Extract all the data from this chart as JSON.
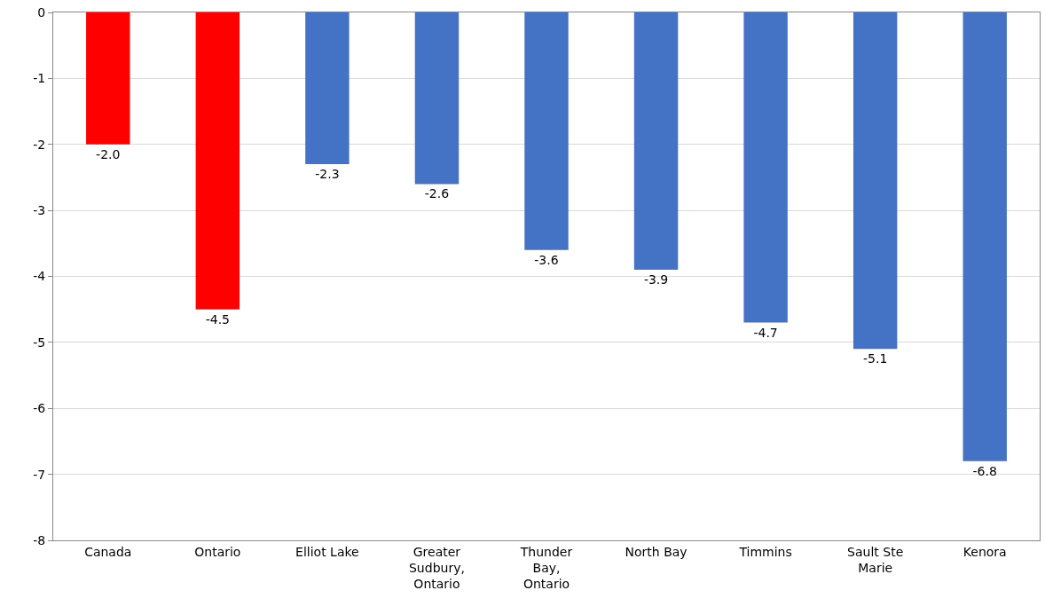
{
  "chart_data": {
    "type": "bar",
    "categories": [
      "Canada",
      "Ontario",
      "Elliot Lake",
      "Greater Sudbury, Ontario",
      "Thunder Bay, Ontario",
      "North Bay",
      "Timmins",
      "Sault Ste Marie",
      "Kenora"
    ],
    "values": [
      -2.0,
      -4.5,
      -2.3,
      -2.6,
      -3.6,
      -3.9,
      -4.7,
      -5.1,
      -6.8
    ],
    "value_labels": [
      "-2.0",
      "-4.5",
      "-2.3",
      "-2.6",
      "-3.6",
      "-3.9",
      "-4.7",
      "-5.1",
      "-6.8"
    ],
    "colors": [
      "#ff0000",
      "#ff0000",
      "#4472c4",
      "#4472c4",
      "#4472c4",
      "#4472c4",
      "#4472c4",
      "#4472c4",
      "#4472c4"
    ],
    "ylim": [
      -8,
      0
    ],
    "yticks": [
      -8,
      -7,
      -6,
      -5,
      -4,
      -3,
      -2,
      -1,
      0
    ],
    "grid": "y"
  }
}
